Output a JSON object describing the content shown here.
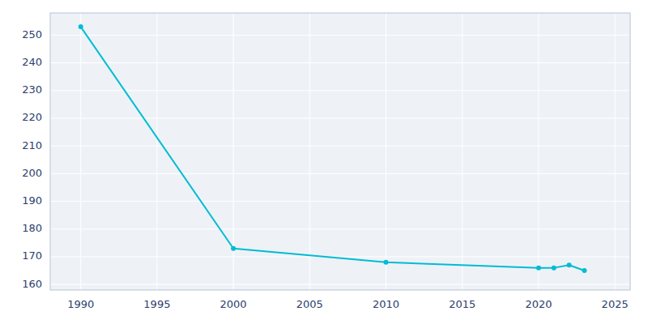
{
  "chart_data": {
    "type": "line",
    "x": [
      1990,
      2000,
      2010,
      2020,
      2021,
      2022,
      2023
    ],
    "values": [
      253,
      173,
      168,
      166,
      166,
      167,
      165
    ],
    "color": "#00BCD4",
    "marker": "circle",
    "xlim": [
      1988,
      2026
    ],
    "ylim": [
      158,
      258
    ],
    "xticks": [
      1990,
      1995,
      2000,
      2005,
      2010,
      2015,
      2020,
      2025
    ],
    "yticks": [
      160,
      170,
      180,
      190,
      200,
      210,
      220,
      230,
      240,
      250
    ],
    "grid": true
  }
}
